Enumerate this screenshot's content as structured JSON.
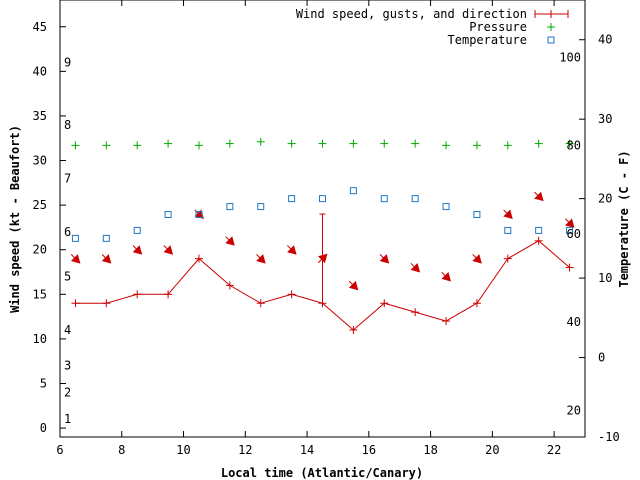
{
  "chart_data": {
    "type": "line",
    "title": "",
    "xlabel": "Local time (Atlantic/Canary)",
    "ylabel": "Wind speed (kt - Beaufort)",
    "y2label": "Temperature (C - F)",
    "xlim": [
      6,
      23
    ],
    "ylim": [
      -1,
      48
    ],
    "y2lim": [
      -10,
      45
    ],
    "x_ticks": [
      6,
      8,
      10,
      12,
      14,
      16,
      18,
      20,
      22
    ],
    "y_ticks": [
      0,
      5,
      10,
      15,
      20,
      25,
      30,
      35,
      40,
      45
    ],
    "y2_ticks": [
      -10,
      0,
      10,
      20,
      30,
      40
    ],
    "beaufort_labels": [
      {
        "label": "1",
        "kt": 1
      },
      {
        "label": "2",
        "kt": 4
      },
      {
        "label": "3",
        "kt": 7
      },
      {
        "label": "4",
        "kt": 11
      },
      {
        "label": "5",
        "kt": 17
      },
      {
        "label": "6",
        "kt": 22
      },
      {
        "label": "7",
        "kt": 28
      },
      {
        "label": "8",
        "kt": 34
      },
      {
        "label": "9",
        "kt": 41
      }
    ],
    "fahrenheit_labels": [
      {
        "label": "20",
        "f": 20
      },
      {
        "label": "40",
        "f": 40
      },
      {
        "label": "60",
        "f": 60
      },
      {
        "label": "80",
        "f": 80
      },
      {
        "label": "100",
        "f": 100
      }
    ],
    "series": [
      {
        "name": "Wind speed, gusts, and direction",
        "color": "#cc0000",
        "x": [
          6.5,
          7.5,
          8.5,
          9.5,
          10.5,
          11.5,
          12.5,
          13.5,
          14.5,
          15.5,
          16.5,
          17.5,
          18.5,
          19.5,
          20.5,
          21.5,
          22.5
        ],
        "values": [
          14,
          14,
          15,
          15,
          19,
          16,
          14,
          15,
          14,
          11,
          14,
          13,
          12,
          14,
          19,
          21,
          18
        ],
        "gusts": [
          {
            "x": 14.5,
            "value": 24
          }
        ],
        "direction_deg": [
          45,
          45,
          45,
          45,
          45,
          45,
          45,
          45,
          315,
          45,
          45,
          45,
          45,
          45,
          45,
          45,
          45
        ]
      },
      {
        "name": "Pressure",
        "color": "#00aa00",
        "x": [
          6.5,
          7.5,
          8.5,
          9.5,
          10.5,
          11.5,
          12.5,
          13.5,
          14.5,
          15.5,
          16.5,
          17.5,
          18.5,
          19.5,
          20.5,
          21.5,
          22.5
        ],
        "values": [
          31.7,
          31.7,
          31.7,
          31.9,
          31.7,
          31.9,
          32.1,
          31.9,
          31.9,
          31.9,
          31.9,
          31.9,
          31.7,
          31.7,
          31.7,
          31.9,
          31.9
        ]
      },
      {
        "name": "Temperature",
        "color": "#1f78c8",
        "axis": "y2",
        "x": [
          6.5,
          7.5,
          8.5,
          9.5,
          10.5,
          11.5,
          12.5,
          13.5,
          14.5,
          15.5,
          16.5,
          17.5,
          18.5,
          19.5,
          20.5,
          21.5,
          22.5
        ],
        "values": [
          15,
          15,
          16,
          18,
          18,
          19,
          19,
          20,
          20,
          21,
          20,
          20,
          19,
          18,
          16,
          16,
          16
        ]
      }
    ],
    "legend": "top-right",
    "grid": false
  }
}
